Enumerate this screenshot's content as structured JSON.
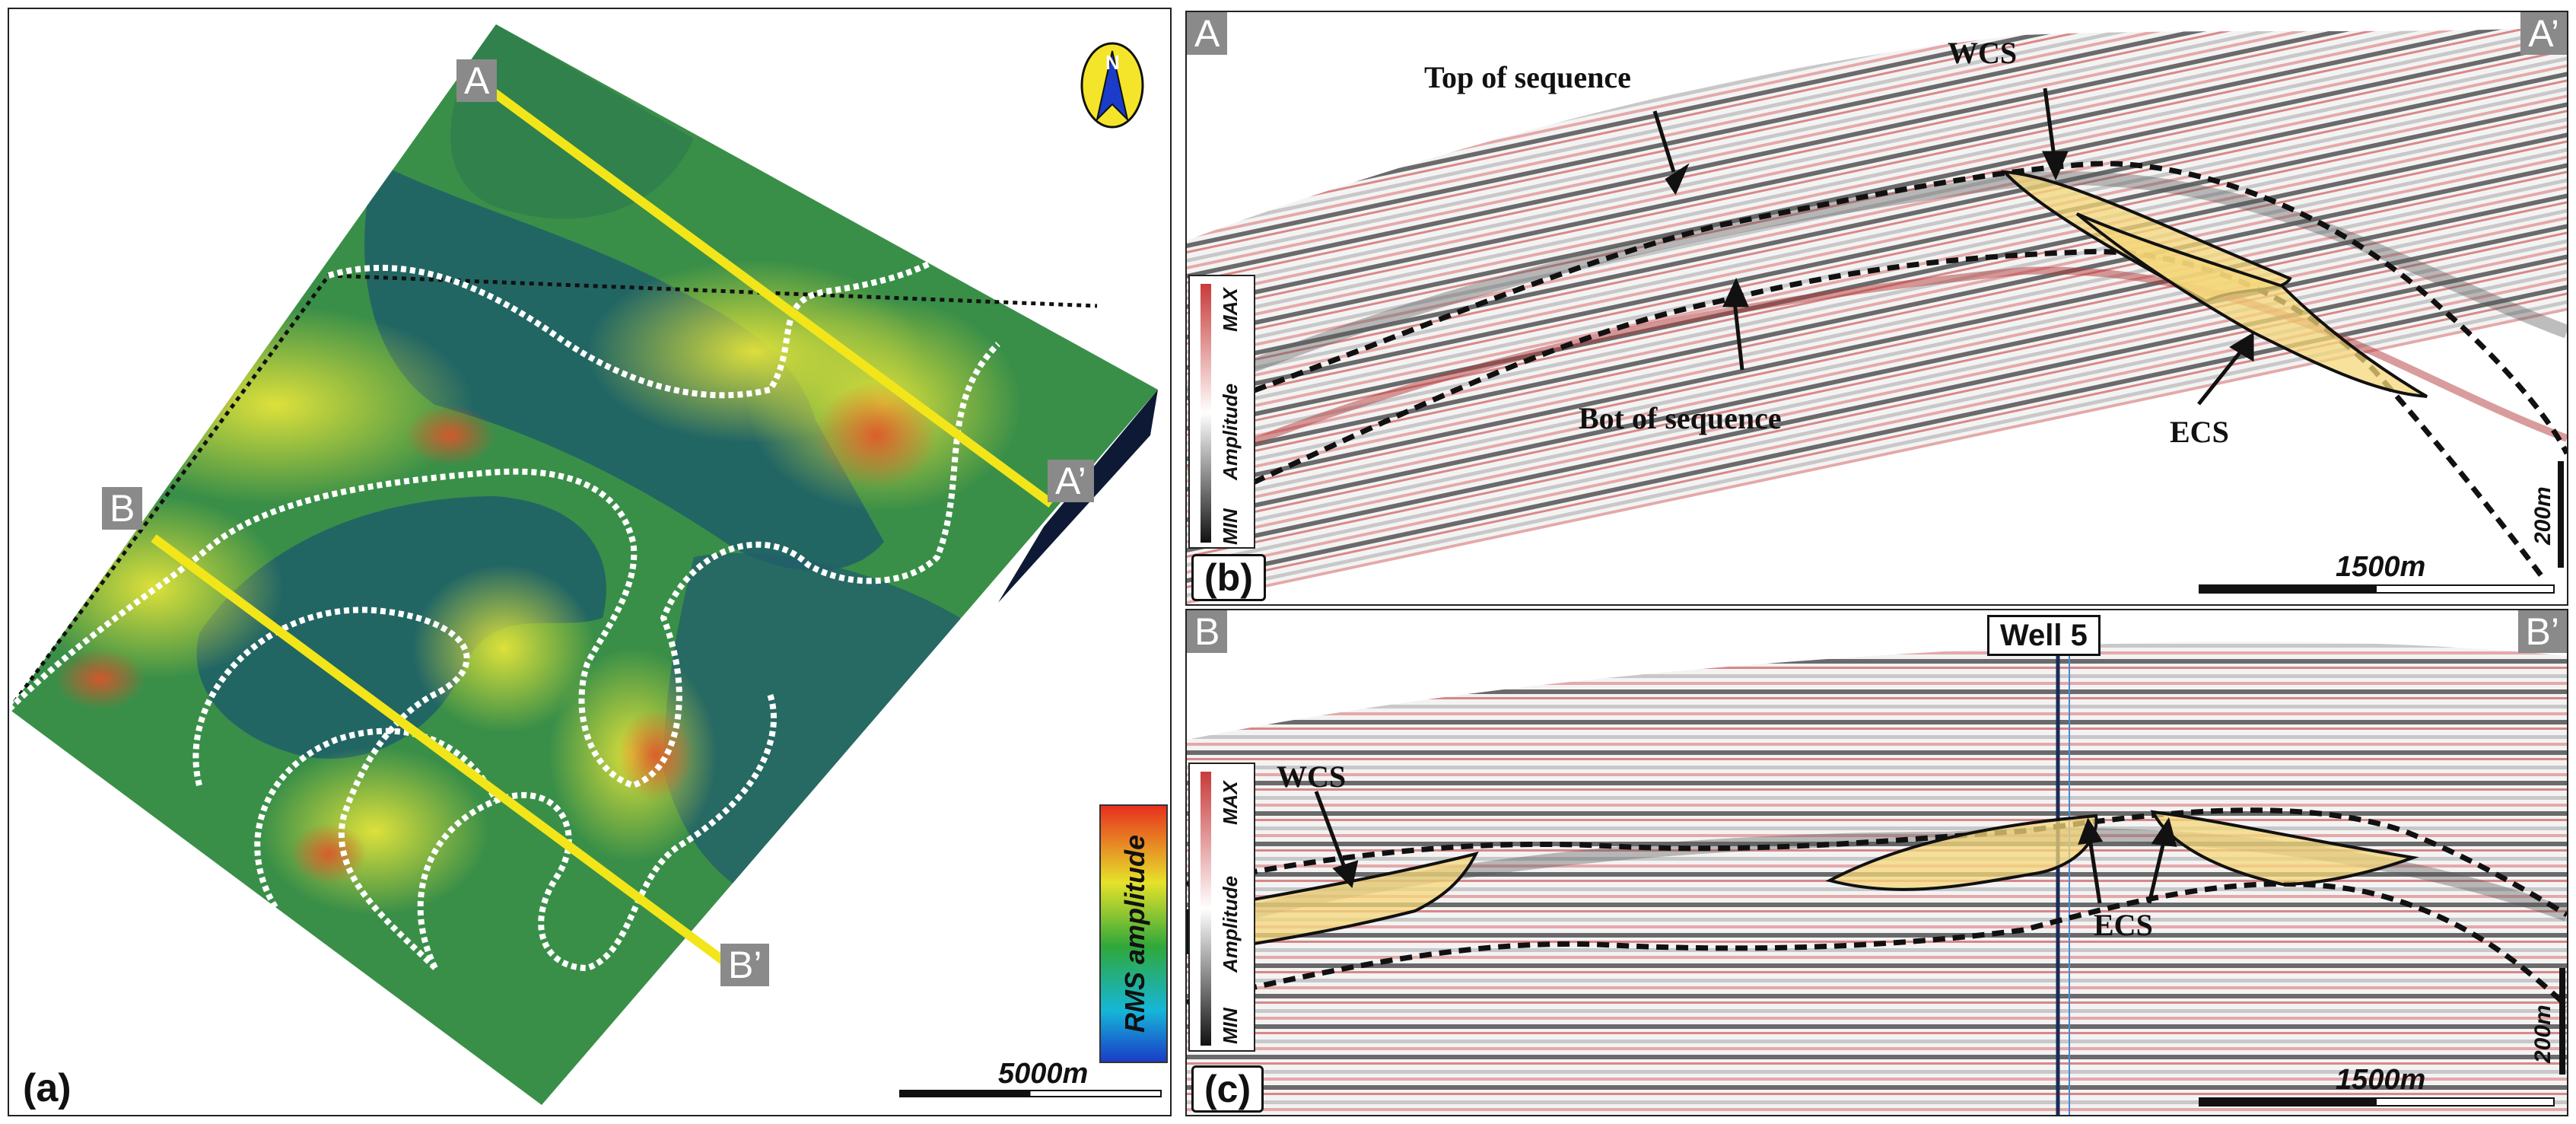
{
  "panel_a": {
    "label": "(a)",
    "profile_a_start": "A",
    "profile_a_end": "A’",
    "profile_b_start": "B",
    "profile_b_end": "B’",
    "scale_text": "5000m",
    "colorbar_label": "RMS amplitude",
    "compass_letter": "N"
  },
  "panel_b": {
    "label": "(b)",
    "corner_left": "A",
    "corner_right": "A’",
    "annotations": {
      "top": "Top of sequence",
      "bot": "Bot of sequence",
      "wcs": "WCS",
      "ecs": "ECS"
    },
    "amp_max": "MAX",
    "amp_min": "MIN",
    "amp_label": "Amplitude",
    "vscale": "200m",
    "hscale": "1500m"
  },
  "panel_c": {
    "label": "(c)",
    "corner_left": "B",
    "corner_right": "B’",
    "well": "Well 5",
    "annotations": {
      "wcs": "WCS",
      "ecs": "ECS"
    },
    "amp_max": "MAX",
    "amp_min": "MIN",
    "amp_label": "Amplitude",
    "vscale": "200m",
    "hscale": "1500m"
  },
  "colors": {
    "profile_line": "#f2e61a",
    "map_dark": "#1e5c6a",
    "map_green": "#3f9d3a",
    "map_yellow": "#d7e23a",
    "map_red": "#e04a2a",
    "fan_fill": "#f4d77a",
    "seis_red": "#c83a3a"
  }
}
